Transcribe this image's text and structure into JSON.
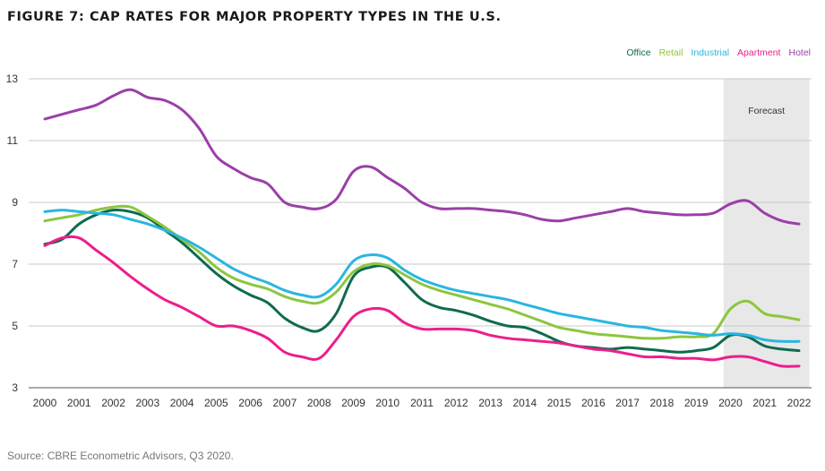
{
  "title": "FIGURE 7: CAP RATES FOR MAJOR PROPERTY TYPES IN THE U.S.",
  "source": "Source: CBRE Econometric Advisors, Q3 2020.",
  "chart_data": {
    "type": "line",
    "title": "FIGURE 7: CAP RATES FOR MAJOR PROPERTY TYPES IN THE U.S.",
    "xlabel": "",
    "ylabel": "",
    "xlim": [
      2000,
      2022
    ],
    "ylim": [
      3,
      13
    ],
    "yticks": [
      3,
      5,
      7,
      9,
      11,
      13
    ],
    "xticks": [
      2000,
      2001,
      2002,
      2003,
      2004,
      2005,
      2006,
      2007,
      2008,
      2009,
      2010,
      2011,
      2012,
      2013,
      2014,
      2015,
      2016,
      2017,
      2018,
      2019,
      2020,
      2021,
      2022
    ],
    "grid": "horizontal",
    "legend_position": "top-right",
    "forecast": {
      "label": "Forecast",
      "start": 2019.8,
      "end": 2022.3,
      "color": "#e8e8e8"
    },
    "series": [
      {
        "name": "Office",
        "color": "#0f6b4f",
        "x": [
          2000,
          2000.5,
          2001,
          2001.5,
          2002,
          2002.5,
          2003,
          2003.5,
          2004,
          2004.5,
          2005,
          2005.5,
          2006,
          2006.5,
          2007,
          2007.5,
          2008,
          2008.5,
          2009,
          2009.5,
          2010,
          2010.5,
          2011,
          2011.5,
          2012,
          2012.5,
          2013,
          2013.5,
          2014,
          2014.5,
          2015,
          2015.5,
          2016,
          2016.5,
          2017,
          2017.5,
          2018,
          2018.5,
          2019,
          2019.5,
          2020,
          2020.5,
          2021,
          2021.5,
          2022
        ],
        "y": [
          7.65,
          7.8,
          8.3,
          8.6,
          8.75,
          8.7,
          8.5,
          8.1,
          7.7,
          7.2,
          6.7,
          6.3,
          6.0,
          5.75,
          5.25,
          4.95,
          4.85,
          5.4,
          6.6,
          6.9,
          6.9,
          6.4,
          5.85,
          5.6,
          5.5,
          5.35,
          5.15,
          5.0,
          4.95,
          4.75,
          4.5,
          4.35,
          4.3,
          4.25,
          4.3,
          4.25,
          4.2,
          4.15,
          4.2,
          4.3,
          4.7,
          4.65,
          4.35,
          4.25,
          4.2
        ]
      },
      {
        "name": "Retail",
        "color": "#8cc63f",
        "x": [
          2000,
          2000.5,
          2001,
          2001.5,
          2002,
          2002.5,
          2003,
          2003.5,
          2004,
          2004.5,
          2005,
          2005.5,
          2006,
          2006.5,
          2007,
          2007.5,
          2008,
          2008.5,
          2009,
          2009.5,
          2010,
          2010.5,
          2011,
          2011.5,
          2012,
          2012.5,
          2013,
          2013.5,
          2014,
          2014.5,
          2015,
          2015.5,
          2016,
          2016.5,
          2017,
          2017.5,
          2018,
          2018.5,
          2019,
          2019.5,
          2020,
          2020.5,
          2021,
          2021.5,
          2022
        ],
        "y": [
          8.4,
          8.5,
          8.6,
          8.75,
          8.85,
          8.85,
          8.55,
          8.2,
          7.8,
          7.4,
          6.9,
          6.55,
          6.35,
          6.2,
          5.95,
          5.8,
          5.75,
          6.1,
          6.75,
          7.0,
          6.95,
          6.65,
          6.35,
          6.15,
          6.0,
          5.85,
          5.7,
          5.55,
          5.35,
          5.15,
          4.95,
          4.85,
          4.75,
          4.7,
          4.65,
          4.6,
          4.6,
          4.65,
          4.65,
          4.75,
          5.55,
          5.8,
          5.4,
          5.3,
          5.2
        ]
      },
      {
        "name": "Industrial",
        "color": "#29b6e0",
        "x": [
          2000,
          2000.5,
          2001,
          2001.5,
          2002,
          2002.5,
          2003,
          2003.5,
          2004,
          2004.5,
          2005,
          2005.5,
          2006,
          2006.5,
          2007,
          2007.5,
          2008,
          2008.5,
          2009,
          2009.5,
          2010,
          2010.5,
          2011,
          2011.5,
          2012,
          2012.5,
          2013,
          2013.5,
          2014,
          2014.5,
          2015,
          2015.5,
          2016,
          2016.5,
          2017,
          2017.5,
          2018,
          2018.5,
          2019,
          2019.5,
          2020,
          2020.5,
          2021,
          2021.5,
          2022
        ],
        "y": [
          8.7,
          8.75,
          8.7,
          8.65,
          8.6,
          8.45,
          8.3,
          8.1,
          7.85,
          7.55,
          7.2,
          6.85,
          6.6,
          6.4,
          6.15,
          6.0,
          5.95,
          6.35,
          7.1,
          7.3,
          7.2,
          6.8,
          6.5,
          6.3,
          6.15,
          6.05,
          5.95,
          5.85,
          5.7,
          5.55,
          5.4,
          5.3,
          5.2,
          5.1,
          5.0,
          4.95,
          4.85,
          4.8,
          4.75,
          4.7,
          4.75,
          4.7,
          4.55,
          4.5,
          4.5
        ]
      },
      {
        "name": "Apartment",
        "color": "#ec1e8c",
        "x": [
          2000,
          2000.5,
          2001,
          2001.5,
          2002,
          2002.5,
          2003,
          2003.5,
          2004,
          2004.5,
          2005,
          2005.5,
          2006,
          2006.5,
          2007,
          2007.5,
          2008,
          2008.5,
          2009,
          2009.5,
          2010,
          2010.5,
          2011,
          2011.5,
          2012,
          2012.5,
          2013,
          2013.5,
          2014,
          2014.5,
          2015,
          2015.5,
          2016,
          2016.5,
          2017,
          2017.5,
          2018,
          2018.5,
          2019,
          2019.5,
          2020,
          2020.5,
          2021,
          2021.5,
          2022
        ],
        "y": [
          7.6,
          7.85,
          7.85,
          7.45,
          7.05,
          6.6,
          6.2,
          5.85,
          5.6,
          5.3,
          5.0,
          5.0,
          4.85,
          4.6,
          4.15,
          4.0,
          3.95,
          4.55,
          5.3,
          5.55,
          5.5,
          5.1,
          4.9,
          4.9,
          4.9,
          4.85,
          4.7,
          4.6,
          4.55,
          4.5,
          4.45,
          4.35,
          4.25,
          4.2,
          4.1,
          4.0,
          4.0,
          3.95,
          3.95,
          3.9,
          4.0,
          4.0,
          3.85,
          3.7,
          3.7
        ]
      },
      {
        "name": "Hotel",
        "color": "#9b3fa8",
        "x": [
          2000,
          2000.5,
          2001,
          2001.5,
          2002,
          2002.5,
          2003,
          2003.5,
          2004,
          2004.5,
          2005,
          2005.5,
          2006,
          2006.5,
          2007,
          2007.5,
          2008,
          2008.5,
          2009,
          2009.5,
          2010,
          2010.5,
          2011,
          2011.5,
          2012,
          2012.5,
          2013,
          2013.5,
          2014,
          2014.5,
          2015,
          2015.5,
          2016,
          2016.5,
          2017,
          2017.5,
          2018,
          2018.5,
          2019,
          2019.5,
          2020,
          2020.5,
          2021,
          2021.5,
          2022
        ],
        "y": [
          11.7,
          11.85,
          12.0,
          12.15,
          12.45,
          12.65,
          12.4,
          12.3,
          12.0,
          11.4,
          10.5,
          10.1,
          9.8,
          9.6,
          9.0,
          8.85,
          8.8,
          9.1,
          10.0,
          10.15,
          9.8,
          9.45,
          9.0,
          8.8,
          8.8,
          8.8,
          8.75,
          8.7,
          8.6,
          8.45,
          8.4,
          8.5,
          8.6,
          8.7,
          8.8,
          8.7,
          8.65,
          8.6,
          8.6,
          8.65,
          8.95,
          9.05,
          8.65,
          8.4,
          8.3
        ]
      }
    ]
  }
}
